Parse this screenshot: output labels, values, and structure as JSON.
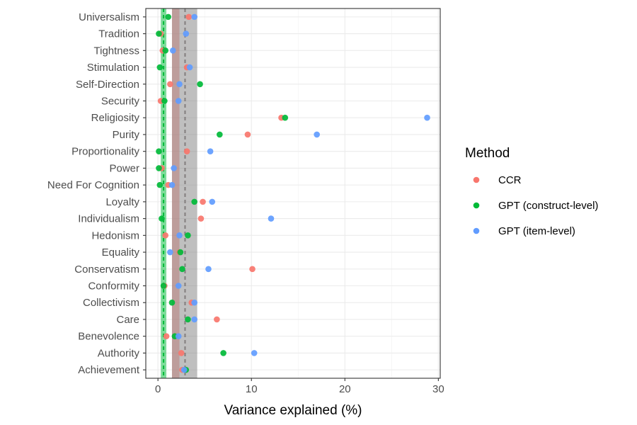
{
  "chart_data": {
    "type": "scatter",
    "title": "",
    "xlabel": "Variance explained (%)",
    "ylabel": "",
    "xlim": [
      -1.3,
      30.2
    ],
    "x_ticks": [
      0,
      10,
      20,
      30
    ],
    "grid": true,
    "legend_position": "right",
    "legend_title": "Method",
    "categories": [
      "Universalism",
      "Tradition",
      "Tightness",
      "Stimulation",
      "Self-Direction",
      "Security",
      "Religiosity",
      "Purity",
      "Proportionality",
      "Power",
      "Need For Cognition",
      "Loyalty",
      "Individualism",
      "Hedonism",
      "Equality",
      "Conservatism",
      "Conformity",
      "Collectivism",
      "Care",
      "Benevolence",
      "Authority",
      "Achievement"
    ],
    "series": [
      {
        "name": "CCR",
        "color": "#F8766D",
        "values": [
          3.3,
          0.3,
          0.5,
          3.1,
          1.3,
          0.3,
          13.2,
          9.6,
          3.1,
          0.4,
          1.1,
          4.8,
          4.6,
          0.8,
          2.3,
          10.1,
          0.7,
          3.6,
          6.3,
          0.9,
          2.5,
          2.6
        ]
      },
      {
        "name": "GPT (construct-level)",
        "color": "#00BA38",
        "values": [
          1.1,
          0.1,
          0.8,
          0.2,
          4.5,
          0.7,
          13.6,
          6.6,
          0.1,
          0.1,
          0.2,
          3.9,
          0.4,
          3.2,
          2.4,
          2.6,
          0.6,
          1.5,
          3.2,
          1.8,
          7.0,
          3.0
        ]
      },
      {
        "name": "GPT (item-level)",
        "color": "#619CFF",
        "values": [
          3.9,
          3.0,
          1.6,
          3.4,
          2.3,
          2.2,
          28.8,
          17.0,
          5.6,
          1.7,
          1.5,
          5.8,
          12.1,
          2.3,
          1.3,
          5.4,
          2.2,
          3.9,
          3.9,
          2.2,
          10.3,
          2.8
        ]
      }
    ],
    "reference_lines": [
      {
        "color": "#00BA38",
        "value": 0.6,
        "band": [
          0.3,
          0.9
        ]
      },
      {
        "color": "#F8766D",
        "value": 2.9,
        "band": [
          1.5,
          2.3
        ]
      },
      {
        "color": "#808080",
        "value": 2.9,
        "band": [
          1.5,
          4.2
        ]
      }
    ]
  }
}
